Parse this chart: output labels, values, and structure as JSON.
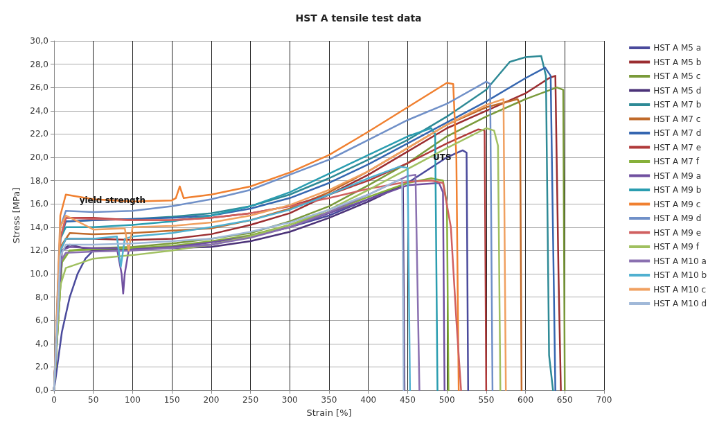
{
  "chart_data": {
    "type": "line",
    "title": "HST A tensile test data",
    "xlabel": "Strain [%]",
    "ylabel": "Stress [MPa]",
    "xlim": [
      0,
      700
    ],
    "xticks": [
      0,
      50,
      100,
      150,
      200,
      250,
      300,
      350,
      400,
      450,
      500,
      550,
      600,
      650,
      700
    ],
    "ylim": [
      0,
      30
    ],
    "yticks": [
      {
        "value": 0,
        "label": "0,0"
      },
      {
        "value": 2,
        "label": "2,0"
      },
      {
        "value": 4,
        "label": "4,0"
      },
      {
        "value": 6,
        "label": "6,0"
      },
      {
        "value": 8,
        "label": "8,0"
      },
      {
        "value": 10,
        "label": "10,0"
      },
      {
        "value": 12,
        "label": "12,0"
      },
      {
        "value": 14,
        "label": "14,0"
      },
      {
        "value": 16,
        "label": "16,0"
      },
      {
        "value": 18,
        "label": "18,0"
      },
      {
        "value": 20,
        "label": "20,0"
      },
      {
        "value": 22,
        "label": "22,0"
      },
      {
        "value": 24,
        "label": "24,0"
      },
      {
        "value": 26,
        "label": "26,0"
      },
      {
        "value": 28,
        "label": "28,0"
      },
      {
        "value": 30,
        "label": "30,0"
      }
    ],
    "grid": true,
    "legend": "right",
    "marker": "none",
    "line_style": "solid",
    "annotations": [
      {
        "text": "yield strength",
        "x": 20,
        "y": 14.5
      },
      {
        "text": "UTS",
        "x": 470,
        "y": 18.2
      }
    ],
    "series": [
      {
        "name": "HST A M5 a",
        "color": "#4a4a9c",
        "x": [
          0,
          10,
          20,
          30,
          40,
          50,
          100,
          150,
          200,
          250,
          300,
          350,
          400,
          450,
          500,
          520,
          525,
          527
        ],
        "values": [
          0,
          5,
          8,
          10,
          11.3,
          12,
          12.2,
          12.3,
          12.5,
          13.2,
          14,
          15,
          16.4,
          17.8,
          20,
          20.6,
          20.4,
          0
        ]
      },
      {
        "name": "HST A M5 b",
        "color": "#9b2d30",
        "x": [
          0,
          8,
          15,
          50,
          100,
          150,
          200,
          250,
          300,
          350,
          400,
          450,
          500,
          550,
          600,
          630,
          638,
          642,
          645
        ],
        "values": [
          0,
          12,
          13,
          13,
          12.9,
          13,
          13.4,
          14.2,
          15.2,
          16.8,
          18.5,
          20.5,
          22.5,
          24,
          25.5,
          26.8,
          27,
          10,
          0
        ]
      },
      {
        "name": "HST A M5 c",
        "color": "#7a9a3a",
        "x": [
          0,
          10,
          20,
          50,
          100,
          150,
          200,
          250,
          300,
          350,
          400,
          450,
          500,
          550,
          600,
          640,
          648,
          650
        ],
        "values": [
          0,
          11,
          12,
          12.2,
          12.3,
          12.6,
          13,
          13.5,
          14.5,
          15.8,
          17.6,
          19.5,
          21.8,
          23.5,
          25,
          26,
          25.8,
          0
        ]
      },
      {
        "name": "HST A M5 d",
        "color": "#4b3278",
        "x": [
          0,
          10,
          20,
          50,
          100,
          150,
          200,
          250,
          300,
          350,
          400,
          440,
          444,
          446
        ],
        "values": [
          0,
          12,
          12.5,
          12,
          12.1,
          12.2,
          12.3,
          12.8,
          13.6,
          14.8,
          16.2,
          17.5,
          17.4,
          0
        ]
      },
      {
        "name": "HST A M7 b",
        "color": "#2e8a96",
        "x": [
          0,
          8,
          15,
          50,
          100,
          150,
          200,
          250,
          300,
          350,
          400,
          450,
          500,
          550,
          580,
          600,
          620,
          626,
          630,
          635
        ],
        "values": [
          0,
          13,
          14.5,
          14.6,
          14.7,
          14.9,
          15.2,
          15.8,
          16.8,
          18.2,
          19.8,
          21.5,
          23.5,
          25.8,
          28.2,
          28.6,
          28.7,
          27,
          3,
          0
        ]
      },
      {
        "name": "HST A M7 c",
        "color": "#c06a2a",
        "x": [
          0,
          10,
          20,
          50,
          100,
          150,
          200,
          250,
          300,
          350,
          400,
          450,
          500,
          550,
          590,
          593,
          595
        ],
        "values": [
          0,
          12.5,
          13.5,
          13.4,
          13.5,
          13.7,
          13.9,
          14.6,
          15.6,
          17,
          18.8,
          20.8,
          22.8,
          24.3,
          25,
          24.5,
          0
        ]
      },
      {
        "name": "HST A M7 d",
        "color": "#3566b0",
        "x": [
          0,
          8,
          15,
          50,
          100,
          150,
          200,
          250,
          300,
          350,
          400,
          450,
          500,
          550,
          600,
          625,
          632,
          638
        ],
        "values": [
          0,
          13,
          14.5,
          14.6,
          14.7,
          14.8,
          15,
          15.6,
          16.5,
          17.8,
          19.4,
          21.2,
          23,
          24.8,
          26.8,
          27.7,
          27,
          0
        ]
      },
      {
        "name": "HST A M7 e",
        "color": "#b03a3a",
        "x": [
          0,
          8,
          15,
          50,
          100,
          150,
          200,
          250,
          300,
          350,
          400,
          450,
          500,
          540,
          548,
          550
        ],
        "values": [
          0,
          13,
          14.8,
          14.8,
          14.6,
          14.6,
          14.8,
          15.2,
          15.8,
          16.8,
          18,
          19.5,
          21.2,
          22.4,
          22.3,
          0
        ]
      },
      {
        "name": "HST A M7 f",
        "color": "#86b03a",
        "x": [
          0,
          10,
          20,
          50,
          100,
          150,
          200,
          250,
          300,
          350,
          400,
          450,
          480,
          495,
          500,
          502
        ],
        "values": [
          0,
          11,
          12,
          12.1,
          12.2,
          12.4,
          12.8,
          13.3,
          14.2,
          15.3,
          16.6,
          17.8,
          18.2,
          18,
          16,
          0
        ]
      },
      {
        "name": "HST A M9 a",
        "color": "#7050a0",
        "x": [
          0,
          10,
          20,
          50,
          80,
          86,
          88,
          90,
          95,
          100,
          150,
          200,
          250,
          300,
          350,
          400,
          450,
          490,
          495,
          497
        ],
        "values": [
          0,
          12,
          12.3,
          12.2,
          12.2,
          10,
          8.3,
          10,
          12,
          12.1,
          12.3,
          12.7,
          13.2,
          14,
          15.2,
          16.4,
          17.6,
          17.8,
          17,
          0
        ]
      },
      {
        "name": "HST A M9 b",
        "color": "#2a9db0",
        "x": [
          0,
          8,
          15,
          50,
          100,
          150,
          200,
          250,
          300,
          350,
          400,
          450,
          480,
          485,
          488
        ],
        "values": [
          0,
          13,
          14,
          14,
          14.2,
          14.5,
          15,
          15.8,
          17,
          18.6,
          20.2,
          21.8,
          22.5,
          22,
          0
        ]
      },
      {
        "name": "HST A M9 c",
        "color": "#f08030",
        "x": [
          0,
          8,
          15,
          50,
          100,
          150,
          155,
          160,
          165,
          200,
          250,
          300,
          350,
          400,
          450,
          500,
          508,
          512,
          515
        ],
        "values": [
          0,
          15,
          16.8,
          16.4,
          16.2,
          16.3,
          16.5,
          17.5,
          16.5,
          16.8,
          17.5,
          18.7,
          20.2,
          22.2,
          24.3,
          26.4,
          26.3,
          20,
          0
        ]
      },
      {
        "name": "HST A M9 d",
        "color": "#7090c8",
        "x": [
          0,
          8,
          15,
          50,
          100,
          150,
          200,
          250,
          300,
          350,
          400,
          450,
          500,
          550,
          555,
          558
        ],
        "values": [
          0,
          14,
          15.4,
          15.3,
          15.4,
          15.8,
          16.4,
          17.2,
          18.5,
          19.8,
          21.5,
          23.2,
          24.6,
          26.5,
          26.3,
          0
        ]
      },
      {
        "name": "HST A M9 e",
        "color": "#d06060",
        "x": [
          0,
          8,
          15,
          50,
          100,
          150,
          200,
          250,
          300,
          350,
          400,
          450,
          480,
          495,
          505,
          512,
          518
        ],
        "values": [
          0,
          13,
          14.8,
          14.7,
          14.6,
          14.6,
          14.8,
          15.2,
          15.8,
          16.5,
          17.3,
          17.9,
          18,
          17.8,
          14,
          6,
          0
        ]
      },
      {
        "name": "HST A M9 f",
        "color": "#a0c060",
        "x": [
          0,
          8,
          15,
          50,
          100,
          150,
          200,
          250,
          300,
          350,
          400,
          450,
          500,
          550,
          560,
          565,
          568
        ],
        "values": [
          0,
          9,
          10.5,
          11.3,
          11.6,
          12,
          12.5,
          13.2,
          14.2,
          15.5,
          17.2,
          19,
          20.8,
          22.5,
          22.3,
          21,
          0
        ]
      },
      {
        "name": "HST A M10 a",
        "color": "#8a70b0",
        "x": [
          0,
          8,
          15,
          50,
          100,
          150,
          200,
          250,
          300,
          350,
          400,
          450,
          460,
          465
        ],
        "values": [
          0,
          11,
          11.8,
          11.9,
          12,
          12.2,
          12.5,
          13.1,
          14,
          15.3,
          16.8,
          18.4,
          18.5,
          0
        ]
      },
      {
        "name": "HST A M10 b",
        "color": "#50b0d0",
        "x": [
          0,
          8,
          15,
          50,
          80,
          85,
          90,
          100,
          150,
          200,
          250,
          300,
          350,
          400,
          440,
          450,
          453
        ],
        "values": [
          0,
          12,
          13,
          13,
          13.2,
          10.6,
          13,
          13.2,
          13.5,
          14,
          14.6,
          15.5,
          16.8,
          18.2,
          19.2,
          19.1,
          0
        ]
      },
      {
        "name": "HST A M10 c",
        "color": "#f0a060",
        "x": [
          0,
          8,
          15,
          30,
          50,
          90,
          95,
          100,
          150,
          200,
          250,
          300,
          350,
          400,
          450,
          500,
          550,
          572,
          575
        ],
        "values": [
          0,
          14,
          15,
          14.5,
          13.8,
          13.9,
          12,
          14,
          14.1,
          14.4,
          15,
          15.9,
          17.2,
          18.8,
          20.8,
          22.8,
          24.5,
          25,
          0
        ]
      },
      {
        "name": "HST A M10 d",
        "color": "#a0b8d8",
        "x": [
          0,
          8,
          15,
          50,
          100,
          150,
          200,
          250,
          300,
          350,
          400,
          440,
          443,
          445
        ],
        "values": [
          0,
          11.5,
          12.5,
          12.5,
          12.6,
          12.8,
          13,
          13.6,
          14.4,
          15.5,
          16.8,
          18.1,
          18,
          0
        ]
      }
    ]
  }
}
